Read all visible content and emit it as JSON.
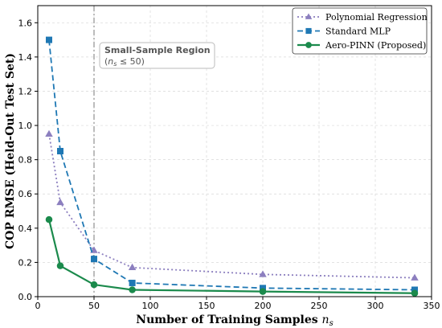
{
  "chart_data": {
    "type": "line",
    "xlabel": "Number of Training Samples",
    "xlabel_symbol": "n",
    "xlabel_sub": "s",
    "ylabel": "COP RMSE (Held-Out Test Set)",
    "xlim": [
      0,
      350
    ],
    "ylim": [
      0,
      1.7
    ],
    "xticks": [
      0,
      50,
      100,
      150,
      200,
      250,
      300,
      350
    ],
    "yticks": [
      0.0,
      0.2,
      0.4,
      0.6,
      0.8,
      1.0,
      1.2,
      1.4,
      1.6
    ],
    "grid": true,
    "legend_position": "top-right",
    "series": [
      {
        "name": "Polynomial Regression",
        "color": "#8c7fbf",
        "marker": "triangle",
        "linestyle": "dotted",
        "x": [
          10,
          20,
          50,
          84,
          200,
          335
        ],
        "y": [
          0.95,
          0.55,
          0.27,
          0.17,
          0.13,
          0.11
        ]
      },
      {
        "name": "Standard MLP",
        "color": "#1f78b4",
        "marker": "square",
        "linestyle": "dashed",
        "x": [
          10,
          20,
          50,
          84,
          200,
          335
        ],
        "y": [
          1.5,
          0.85,
          0.22,
          0.08,
          0.05,
          0.04
        ]
      },
      {
        "name": "Aero-PINN (Proposed)",
        "color": "#1b8a4c",
        "marker": "circle",
        "linestyle": "solid",
        "x": [
          10,
          20,
          50,
          84,
          200,
          335
        ],
        "y": [
          0.45,
          0.18,
          0.07,
          0.04,
          0.03,
          0.02
        ]
      }
    ],
    "vline": {
      "x": 50,
      "color": "#999999"
    },
    "annotation": {
      "title": "Small-Sample Region",
      "subtitle_prefix": "(",
      "subtitle_symbol": "n",
      "subtitle_sub": "s",
      "subtitle_rest": " ≤ 50)"
    }
  }
}
